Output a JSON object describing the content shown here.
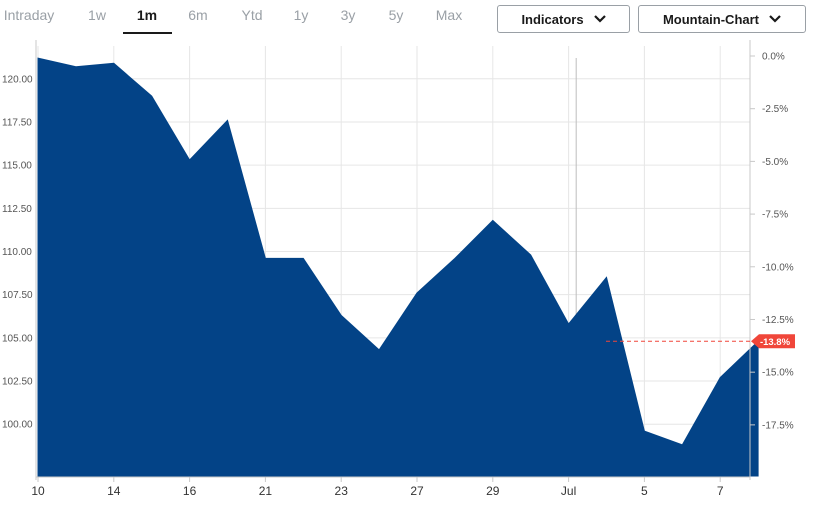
{
  "toolbar": {
    "ranges": [
      {
        "label": "Intraday",
        "active": false
      },
      {
        "label": "1w",
        "active": false
      },
      {
        "label": "1m",
        "active": true
      },
      {
        "label": "6m",
        "active": false
      },
      {
        "label": "Ytd",
        "active": false
      },
      {
        "label": "1y",
        "active": false
      },
      {
        "label": "3y",
        "active": false
      },
      {
        "label": "5y",
        "active": false
      },
      {
        "label": "Max",
        "active": false
      }
    ],
    "indicators_label": "Indicators",
    "chart_type_label": "Mountain-Chart",
    "chevron_icon": "chevron-down-icon"
  },
  "colors": {
    "area": "#034387",
    "grid": "#e6e6e6",
    "badge": "#f0463a",
    "axis": "#c8c8c8"
  },
  "chart_data": {
    "type": "area",
    "x": [
      0,
      1,
      2,
      3,
      4,
      5,
      6,
      7,
      8,
      9,
      10,
      11,
      12,
      13,
      14,
      15,
      16,
      17,
      18,
      19
    ],
    "values": [
      121.2,
      120.7,
      120.9,
      119.0,
      115.3,
      117.6,
      109.6,
      109.6,
      106.3,
      104.3,
      107.6,
      109.6,
      111.8,
      109.8,
      105.8,
      108.5,
      99.6,
      98.8,
      102.7,
      104.8
    ],
    "x_tick_labels": [
      {
        "index": 0,
        "label": "10"
      },
      {
        "index": 2,
        "label": "14"
      },
      {
        "index": 4,
        "label": "16"
      },
      {
        "index": 6,
        "label": "21"
      },
      {
        "index": 8,
        "label": "23"
      },
      {
        "index": 10,
        "label": "27"
      },
      {
        "index": 12,
        "label": "29"
      },
      {
        "index": 14,
        "label": "Jul"
      },
      {
        "index": 16,
        "label": "5"
      },
      {
        "index": 18,
        "label": "7"
      }
    ],
    "month_divider_index": 14.2,
    "y_left_ticks": [
      {
        "value": 120.0,
        "label": "120.00"
      },
      {
        "value": 117.5,
        "label": "117.50"
      },
      {
        "value": 115.0,
        "label": "115.00"
      },
      {
        "value": 112.5,
        "label": "112.50"
      },
      {
        "value": 110.0,
        "label": "110.00"
      },
      {
        "value": 107.5,
        "label": "107.50"
      },
      {
        "value": 105.0,
        "label": "105.00"
      },
      {
        "value": 102.5,
        "label": "102.50"
      },
      {
        "value": 100.0,
        "label": "100.00"
      }
    ],
    "y_right_ticks": [
      {
        "value": 0.0,
        "label": "0.0%"
      },
      {
        "value": -2.5,
        "label": "-2.5%"
      },
      {
        "value": -5.0,
        "label": "-5.0%"
      },
      {
        "value": -7.5,
        "label": "-7.5%"
      },
      {
        "value": -10.0,
        "label": "-10.0%"
      },
      {
        "value": -12.5,
        "label": "-12.5%"
      },
      {
        "value": -15.0,
        "label": "-15.0%"
      },
      {
        "value": -17.5,
        "label": "-17.5%"
      }
    ],
    "ylim": [
      97.0,
      121.9
    ],
    "y_right_range": [
      -20.4,
      0.0
    ],
    "current_change_label": "-13.8%",
    "grid": true
  }
}
